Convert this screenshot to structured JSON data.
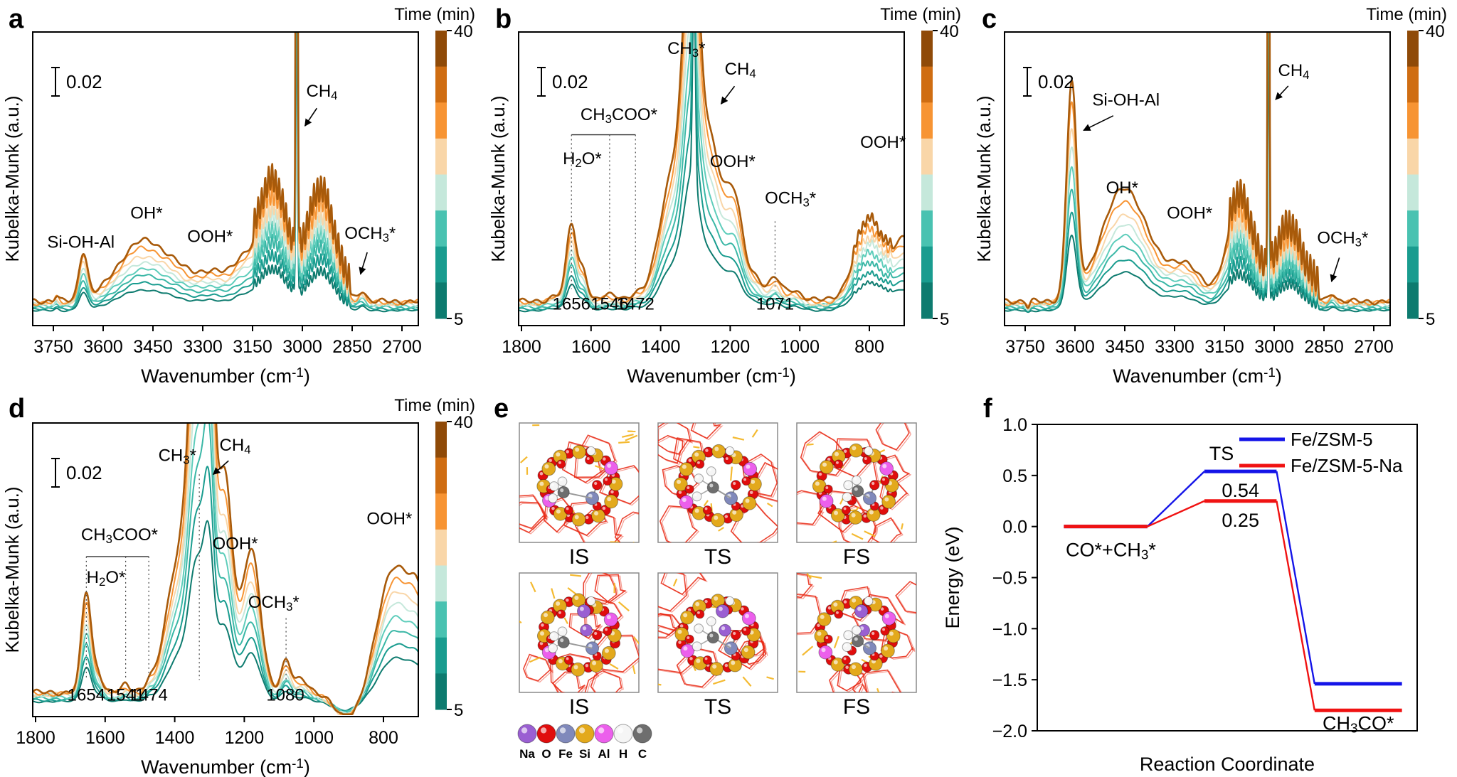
{
  "letters": {
    "a": "a",
    "b": "b",
    "c": "c",
    "d": "d",
    "e": "e",
    "f": "f"
  },
  "colorbar": {
    "title": "Time (min)",
    "top_label": "40",
    "bottom_label": "5",
    "colors_top_to_bottom": [
      "#8f4a08",
      "#cf6d12",
      "#f79433",
      "#f9d6a8",
      "#c5e8db",
      "#49c2b1",
      "#199c8f",
      "#0d7b6f"
    ]
  },
  "series": {
    "times_min": [
      5,
      10,
      15,
      20,
      25,
      30,
      35,
      40
    ],
    "scales": [
      0.34,
      0.44,
      0.54,
      0.63,
      0.72,
      0.8,
      0.9,
      1.0
    ],
    "colors_low_to_high": [
      "#0d7b6f",
      "#199c8f",
      "#3ab7a6",
      "#5ecdbb",
      "#c5e8db",
      "#f9d6a8",
      "#f79433",
      "#a85a0a"
    ]
  },
  "chart_data": [
    {
      "id": "a",
      "type": "line",
      "kind": "ir-spectra",
      "xlabel": "Wavenumber (cm^{-1})",
      "ylabel": "Kubelka-Munk (a.u.)",
      "scale_bar": "0.02",
      "x_ticks": [
        3750,
        3600,
        3450,
        3300,
        3150,
        3000,
        2850,
        2700
      ],
      "x_axis_reversed": true,
      "peaks": [
        {
          "center": 3740,
          "sigma": 6,
          "amp": 0.018
        },
        {
          "center": 3660,
          "sigma": 13,
          "amp": 0.16,
          "assign": "Si-OH-Al"
        },
        {
          "center": 3480,
          "sigma": 75,
          "amp": 0.2,
          "assign": "OH*"
        },
        {
          "center": 3380,
          "sigma": 40,
          "amp": 0.04
        },
        {
          "center": 3270,
          "sigma": 55,
          "amp": 0.1,
          "assign": "OOH*"
        },
        {
          "center": 3180,
          "sigma": 30,
          "amp": 0.1
        },
        {
          "center": 3090,
          "sigma": 42,
          "amp": 0.36
        },
        {
          "center": 2945,
          "sigma": 38,
          "amp": 0.33
        },
        {
          "comb": {
            "from": 3150,
            "to": 2860,
            "step": 10.5
          },
          "sigma": 2.2,
          "amp": 0.1
        },
        {
          "center": 3017,
          "sigma": 2.5,
          "amp": 3.0,
          "assign": "CH4 (gas)"
        },
        {
          "center": 2820,
          "sigma": 11,
          "amp": 0.035,
          "assign": "OCH3*"
        }
      ],
      "annotations": [
        {
          "text": "Si-OH-Al",
          "fx": 0.125,
          "fy": 0.735
        },
        {
          "text": "OH*",
          "fx": 0.295,
          "fy": 0.635
        },
        {
          "text": "OOH*",
          "fx": 0.46,
          "fy": 0.715
        },
        {
          "text": "CH_{4}",
          "fx": 0.75,
          "fy": 0.22,
          "arrow_to": {
            "fx": 0.706,
            "fy": 0.32
          }
        },
        {
          "text": "OCH_{3}*",
          "fx": 0.875,
          "fy": 0.705,
          "arrow_to": {
            "fx": 0.85,
            "fy": 0.825
          }
        }
      ]
    },
    {
      "id": "b",
      "type": "line",
      "kind": "ir-spectra",
      "xlabel": "Wavenumber (cm^{-1})",
      "ylabel": "Kubelka-Munk (a.u.)",
      "scale_bar": "0.02",
      "x_ticks": [
        1800,
        1600,
        1400,
        1200,
        1000,
        800
      ],
      "x_axis_reversed": true,
      "peaks": [
        {
          "center": 1700,
          "sigma": 20,
          "amp": 0.02
        },
        {
          "center": 1656,
          "sigma": 14,
          "amp": 0.26,
          "assign": "H2O*"
        },
        {
          "center": 1622,
          "sigma": 12,
          "amp": 0.1
        },
        {
          "center": 1546,
          "sigma": 25,
          "amp": 0.015,
          "assign": "CH3COO*"
        },
        {
          "center": 1472,
          "sigma": 15,
          "amp": 0.02,
          "assign": "CH3COO*"
        },
        {
          "center": 1360,
          "sigma": 40,
          "amp": 0.45
        },
        {
          "center": 1310,
          "sigma": 22,
          "amp": 1.1,
          "assign": "CH3*"
        },
        {
          "center": 1304,
          "sigma": 4,
          "amp": 2.0,
          "assign": "CH4 (gas)"
        },
        {
          "center": 1255,
          "sigma": 28,
          "amp": 0.5
        },
        {
          "center": 1190,
          "sigma": 26,
          "amp": 0.35,
          "assign": "OOH*"
        },
        {
          "center": 1125,
          "sigma": 22,
          "amp": 0.07
        },
        {
          "center": 1071,
          "sigma": 16,
          "amp": 0.07,
          "assign": "OCH3*"
        },
        {
          "center": 1020,
          "sigma": 22,
          "amp": 0.035
        },
        {
          "center": 800,
          "sigma": 42,
          "amp": 0.26,
          "assign": "OOH*"
        },
        {
          "comb": {
            "from": 850,
            "to": 740,
            "step": 13
          },
          "sigma": 3,
          "amp": 0.035
        },
        {
          "center": 695,
          "sigma": 35,
          "amp": 0.2
        }
      ],
      "wavenumber_markers": [
        "1656",
        "1546",
        "1472",
        "1071"
      ],
      "annotations": [
        {
          "text": "CH_{3}*",
          "fx": 0.435,
          "fy": 0.075
        },
        {
          "text": "CH_{4}",
          "fx": 0.575,
          "fy": 0.145,
          "arrow_to": {
            "fx": 0.525,
            "fy": 0.245
          }
        },
        {
          "text": "CH_{3}COO*",
          "fx": 0.26,
          "fy": 0.3
        },
        {
          "text": "H_{2}O*",
          "fx": 0.165,
          "fy": 0.45
        },
        {
          "text": "OOH*",
          "fx": 0.555,
          "fy": 0.46
        },
        {
          "text": "OCH_{3}*",
          "fx": 0.705,
          "fy": 0.585
        },
        {
          "text": "OOH*",
          "fx": 0.945,
          "fy": 0.395
        }
      ],
      "bracket": {
        "fy": 0.35,
        "fx1": 0.137,
        "fx2": 0.303,
        "drops": [
          0.137,
          0.236,
          0.303
        ],
        "drop_to": 0.875
      },
      "guides": [
        {
          "fx": 0.665,
          "fy1": 0.645,
          "fy2": 0.875
        }
      ],
      "numbers": [
        {
          "text": "1656",
          "fx": 0.137
        },
        {
          "text": "1546",
          "fx": 0.236
        },
        {
          "text": "1472",
          "fx": 0.303
        },
        {
          "text": "1071",
          "fx": 0.665
        }
      ],
      "numbers_fy": 0.945
    },
    {
      "id": "c",
      "type": "line",
      "kind": "ir-spectra",
      "xlabel": "Wavenumber (cm^{-1})",
      "ylabel": "Kubelka-Munk (a.u.)",
      "scale_bar": "0.02",
      "x_ticks": [
        3750,
        3600,
        3450,
        3300,
        3150,
        3000,
        2850,
        2700
      ],
      "x_axis_reversed": true,
      "peaks": [
        {
          "center": 3741,
          "sigma": 5,
          "amp": -0.02
        },
        {
          "center": 3610,
          "sigma": 15,
          "amp": 0.72,
          "assign": "Si-OH-Al"
        },
        {
          "center": 3450,
          "sigma": 70,
          "amp": 0.38,
          "assign": "OH*"
        },
        {
          "center": 3270,
          "sigma": 50,
          "amp": 0.12,
          "assign": "OOH*"
        },
        {
          "center": 3105,
          "sigma": 40,
          "amp": 0.3
        },
        {
          "center": 2955,
          "sigma": 35,
          "amp": 0.2
        },
        {
          "comb": {
            "from": 3140,
            "to": 2870,
            "step": 10.5
          },
          "sigma": 2.2,
          "amp": 0.11
        },
        {
          "center": 3017,
          "sigma": 2.2,
          "amp": 3.0,
          "assign": "CH4 (gas)"
        },
        {
          "center": 2825,
          "sigma": 10,
          "amp": 0.028,
          "assign": "OCH3*"
        }
      ],
      "annotations": [
        {
          "text": "Si-OH-Al",
          "fx": 0.315,
          "fy": 0.25,
          "arrow_to": {
            "fx": 0.205,
            "fy": 0.335
          }
        },
        {
          "text": "OH*",
          "fx": 0.305,
          "fy": 0.55
        },
        {
          "text": "OOH*",
          "fx": 0.48,
          "fy": 0.635
        },
        {
          "text": "CH_{4}",
          "fx": 0.75,
          "fy": 0.15,
          "arrow_to": {
            "fx": 0.703,
            "fy": 0.23
          }
        },
        {
          "text": "OCH_{3}*",
          "fx": 0.877,
          "fy": 0.72,
          "arrow_to": {
            "fx": 0.848,
            "fy": 0.85
          }
        }
      ]
    },
    {
      "id": "d",
      "type": "line",
      "kind": "ir-spectra",
      "xlabel": "Wavenumber (cm^{-1})",
      "ylabel": "Kubelka-Munk (a.u.)",
      "scale_bar": "0.02",
      "x_ticks": [
        1800,
        1600,
        1400,
        1200,
        1000,
        800
      ],
      "x_axis_reversed": true,
      "peaks": [
        {
          "center": 1654,
          "sigma": 14,
          "amp": 0.34,
          "assign": "H2O*"
        },
        {
          "center": 1620,
          "sigma": 12,
          "amp": 0.06
        },
        {
          "center": 1541,
          "sigma": 9,
          "amp": 0.02,
          "assign": "CH3COO*"
        },
        {
          "center": 1474,
          "sigma": 10,
          "amp": 0.025,
          "assign": "CH3COO*"
        },
        {
          "center": 1385,
          "sigma": 38,
          "amp": 0.45
        },
        {
          "center": 1335,
          "sigma": 22,
          "amp": 1.2,
          "assign": "CH3*"
        },
        {
          "center": 1302,
          "sigma": 14,
          "amp": 1.2,
          "assign": "CH4 (gas)"
        },
        {
          "center": 1258,
          "sigma": 24,
          "amp": 0.75
        },
        {
          "center": 1180,
          "sigma": 26,
          "amp": 0.48,
          "assign": "OOH*"
        },
        {
          "center": 1080,
          "sigma": 14,
          "amp": 0.1,
          "assign": "OCH3*"
        },
        {
          "center": 1035,
          "sigma": 18,
          "amp": 0.04
        },
        {
          "center": 905,
          "sigma": 38,
          "amp": -0.09
        },
        {
          "center": 770,
          "sigma": 45,
          "amp": 0.42,
          "assign": "OOH*"
        },
        {
          "center": 695,
          "sigma": 30,
          "amp": 0.25
        }
      ],
      "wavenumber_markers": [
        "1654",
        "1541",
        "1474",
        "1080"
      ],
      "annotations": [
        {
          "text": "CH_{3}*",
          "fx": 0.375,
          "fy": 0.13
        },
        {
          "text": "CH_{4}",
          "fx": 0.525,
          "fy": 0.095,
          "arrow_to": {
            "fx": 0.468,
            "fy": 0.175
          }
        },
        {
          "text": "CH_{3}COO*",
          "fx": 0.225,
          "fy": 0.4
        },
        {
          "text": "H_{2}O*",
          "fx": 0.19,
          "fy": 0.545
        },
        {
          "text": "OOH*",
          "fx": 0.525,
          "fy": 0.43
        },
        {
          "text": "OCH_{3}*",
          "fx": 0.625,
          "fy": 0.63
        },
        {
          "text": "OOH*",
          "fx": 0.925,
          "fy": 0.345
        }
      ],
      "bracket": {
        "fy": 0.455,
        "fx1": 0.139,
        "fx2": 0.301,
        "drops": [
          0.139,
          0.241,
          0.301
        ],
        "drop_to": 0.875
      },
      "guides": [
        {
          "fx": 0.432,
          "fy1": 0.175,
          "fy2": 0.875
        },
        {
          "fx": 0.657,
          "fy1": 0.665,
          "fy2": 0.875
        }
      ],
      "numbers": [
        {
          "text": "1654",
          "fx": 0.139
        },
        {
          "text": "1541",
          "fx": 0.241
        },
        {
          "text": "1474",
          "fx": 0.301
        },
        {
          "text": "1080",
          "fx": 0.655
        }
      ],
      "numbers_fy": 0.945
    },
    {
      "id": "f",
      "type": "line",
      "kind": "energy-diagram",
      "xlabel": "Reaction Coordinate",
      "ylabel": "Energy (eV)",
      "ylim": [
        -2.0,
        1.0
      ],
      "yticks": [
        1.0,
        0.5,
        0.0,
        -0.5,
        -1.0,
        -1.5,
        -2.0
      ],
      "legend": [
        {
          "label": "Fe/ZSM-5",
          "color": "#1414e8"
        },
        {
          "label": "Fe/ZSM-5-Na",
          "color": "#f01212"
        }
      ],
      "stages": [
        "IS",
        "TS",
        "FS"
      ],
      "series": [
        {
          "name": "Fe/ZSM-5",
          "color": "#1414e8",
          "energies_eV": [
            0.0,
            0.54,
            -1.54
          ]
        },
        {
          "name": "Fe/ZSM-5-Na",
          "color": "#f01212",
          "energies_eV": [
            0.0,
            0.25,
            -1.8
          ]
        }
      ],
      "labels": {
        "initial_state": "CO*+CH_{3}*",
        "ts": "TS",
        "barrier_blue": "0.54",
        "barrier_red": "0.25",
        "final_state": "CH_{3}CO*"
      }
    }
  ],
  "panel_e": {
    "rows": [
      {
        "frames": [
          "IS",
          "TS",
          "FS"
        ],
        "has_na": false
      },
      {
        "frames": [
          "IS",
          "TS",
          "FS"
        ],
        "has_na": true
      }
    ],
    "atom_legend": [
      {
        "symbol": "Na",
        "color": "#9a5fd2"
      },
      {
        "symbol": "O",
        "color": "#e00d0d"
      },
      {
        "symbol": "Fe",
        "color": "#8089bb"
      },
      {
        "symbol": "Si",
        "color": "#e3a91c"
      },
      {
        "symbol": "Al",
        "color": "#ec5fec"
      },
      {
        "symbol": "H",
        "color": "#f5f5f5"
      },
      {
        "symbol": "C",
        "color": "#6e6e6e"
      }
    ]
  }
}
